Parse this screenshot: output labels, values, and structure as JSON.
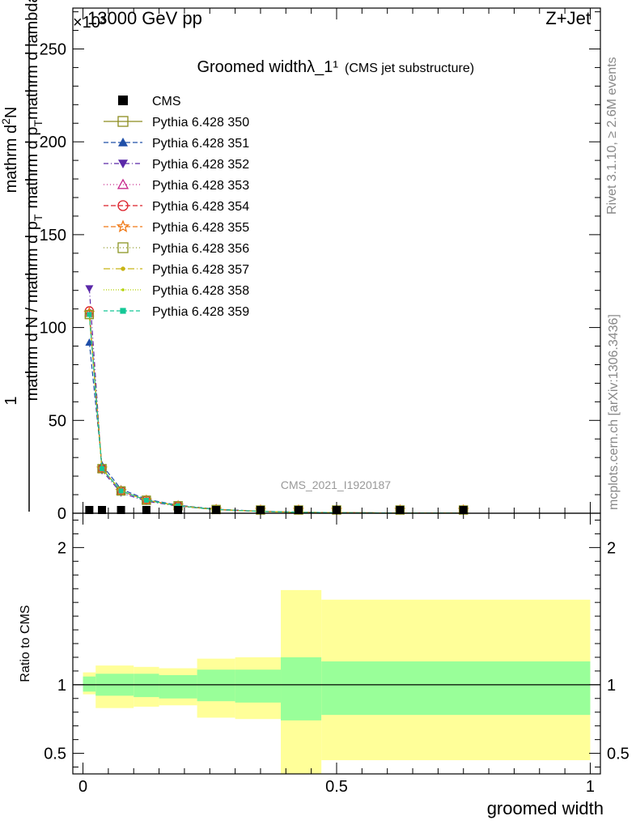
{
  "header": {
    "left": "13000 GeV pp",
    "right": "Z+Jet",
    "exponent": "×10³"
  },
  "side_labels": {
    "rivet": "Rivet 3.1.10, ≥ 2.6M events",
    "mcplots": "mcplots.cern.ch [arXiv:1306.3436]"
  },
  "chart_data": [
    {
      "type": "line",
      "title": "Groomed widthλ_1¹",
      "subtitle": "(CMS jet substructure)",
      "watermark": "CMS_2021_I1920187",
      "ylabel": {
        "prefix": "1",
        "line1": "mathrm d N / mathrm d p",
        "sub1": "T",
        "line2": "mathrm dN",
        "line3": "mathrm d p",
        "sub3": "T",
        "line4": " mathrm d lambda",
        "frac": "mathrm d²N / mathrm d p_T mathrm d lambda"
      },
      "ylabel_pieces": {
        "one": "1",
        "den": "mathrm d N / mathrm d p",
        "den_sub": "T",
        "num_top": "mathrm d",
        "num_sup": "2",
        "num_n": "N",
        "num_bottom": "mathrm d p",
        "num_bottom_sub": "T",
        "num_rest": " mathrm d p",
        "num_rest2": "mathrm d lambda"
      },
      "xlim": [
        -0.02,
        1.02
      ],
      "ylim": [
        0,
        272
      ],
      "y_scale_note": "×10³",
      "yticks": [
        0,
        50,
        100,
        150,
        200,
        250
      ],
      "grid": false,
      "legend_position": "top-left",
      "x": [
        0.0125,
        0.0375,
        0.075,
        0.125,
        0.1875,
        0.2625,
        0.35,
        0.425,
        0.5,
        0.625,
        0.75
      ],
      "series": [
        {
          "name": "CMS",
          "color": "#000000",
          "marker": "square-filled",
          "dash": "none",
          "values": [
            0.4,
            0.35,
            0.3,
            0.3,
            0.2,
            0.1,
            0.1,
            0.05,
            0.0,
            0.0,
            0.0
          ]
        },
        {
          "name": "Pythia 6.428 350",
          "color": "#8c8c1e",
          "marker": "square-open",
          "dash": "solid",
          "values": [
            107,
            24,
            12,
            7,
            4,
            2,
            1,
            0.5,
            0.3,
            0.15,
            0.1
          ]
        },
        {
          "name": "Pythia 6.428 351",
          "color": "#1f4fa8",
          "marker": "triangle-up-filled",
          "dash": "6,3",
          "values": [
            92,
            26,
            13,
            7.5,
            4.3,
            2.2,
            1.1,
            0.6,
            0.3,
            0.15,
            0.1
          ]
        },
        {
          "name": "Pythia 6.428 352",
          "color": "#5a28a8",
          "marker": "triangle-down-filled",
          "dash": "6,3,1,3",
          "values": [
            121,
            23,
            11,
            6.5,
            3.8,
            1.9,
            1,
            0.5,
            0.3,
            0.15,
            0.1
          ]
        },
        {
          "name": "Pythia 6.428 353",
          "color": "#c8288c",
          "marker": "triangle-up-open",
          "dash": "1,3",
          "values": [
            108,
            24,
            12,
            7,
            4,
            2,
            1,
            0.5,
            0.3,
            0.15,
            0.1
          ]
        },
        {
          "name": "Pythia 6.428 354",
          "color": "#dc1e28",
          "marker": "circle-open",
          "dash": "6,3",
          "values": [
            109,
            24,
            12,
            7,
            4,
            2,
            1,
            0.5,
            0.3,
            0.15,
            0.1
          ]
        },
        {
          "name": "Pythia 6.428 355",
          "color": "#f07814",
          "marker": "star-open",
          "dash": "6,3",
          "values": [
            108,
            24,
            12,
            7,
            4,
            2,
            1,
            0.5,
            0.3,
            0.15,
            0.1
          ]
        },
        {
          "name": "Pythia 6.428 356",
          "color": "#8c9623",
          "marker": "square-open",
          "dash": "1,3",
          "values": [
            107,
            24,
            12,
            7,
            4,
            2,
            1,
            0.5,
            0.3,
            0.15,
            0.1
          ]
        },
        {
          "name": "Pythia 6.428 357",
          "color": "#c8b414",
          "marker": "dot",
          "dash": "8,3,1,3",
          "values": [
            107,
            24,
            12,
            7,
            4,
            2,
            1,
            0.5,
            0.3,
            0.15,
            0.1
          ]
        },
        {
          "name": "Pythia 6.428 358",
          "color": "#b4d200",
          "marker": "dot-small",
          "dash": "1,2",
          "values": [
            107,
            24,
            12,
            7,
            4,
            2,
            1,
            0.5,
            0.3,
            0.15,
            0.1
          ]
        },
        {
          "name": "Pythia 6.428 359",
          "color": "#14c896",
          "marker": "square-small-filled",
          "dash": "5,3",
          "values": [
            107,
            24,
            12,
            7,
            4,
            2,
            1,
            0.5,
            0.3,
            0.15,
            0.1
          ]
        }
      ]
    },
    {
      "type": "area",
      "ylabel": "Ratio to CMS",
      "xlabel": "groomed width",
      "xlim": [
        -0.02,
        1.02
      ],
      "ylim": [
        0.35,
        2.25
      ],
      "yticks": [
        0.5,
        1,
        2
      ],
      "xticks": [
        0,
        0.5,
        1
      ],
      "reference_line": 1,
      "bins": [
        {
          "lo": 0.0,
          "hi": 0.025,
          "inner": [
            0.95,
            1.06
          ],
          "outer": [
            0.93,
            1.09
          ]
        },
        {
          "lo": 0.025,
          "hi": 0.1,
          "inner": [
            0.92,
            1.08
          ],
          "outer": [
            0.83,
            1.14
          ]
        },
        {
          "lo": 0.1,
          "hi": 0.15,
          "inner": [
            0.91,
            1.08
          ],
          "outer": [
            0.84,
            1.13
          ]
        },
        {
          "lo": 0.15,
          "hi": 0.225,
          "inner": [
            0.9,
            1.07
          ],
          "outer": [
            0.85,
            1.12
          ]
        },
        {
          "lo": 0.225,
          "hi": 0.3,
          "inner": [
            0.88,
            1.11
          ],
          "outer": [
            0.76,
            1.19
          ]
        },
        {
          "lo": 0.3,
          "hi": 0.39,
          "inner": [
            0.87,
            1.11
          ],
          "outer": [
            0.75,
            1.2
          ]
        },
        {
          "lo": 0.39,
          "hi": 0.47,
          "inner": [
            0.74,
            1.2
          ],
          "outer": [
            0.35,
            1.69
          ]
        },
        {
          "lo": 0.47,
          "hi": 1.0,
          "inner": [
            0.78,
            1.17
          ],
          "outer": [
            0.45,
            1.62
          ]
        }
      ],
      "colors": {
        "inner": "#99ff99",
        "outer": "#ffff99"
      }
    }
  ]
}
